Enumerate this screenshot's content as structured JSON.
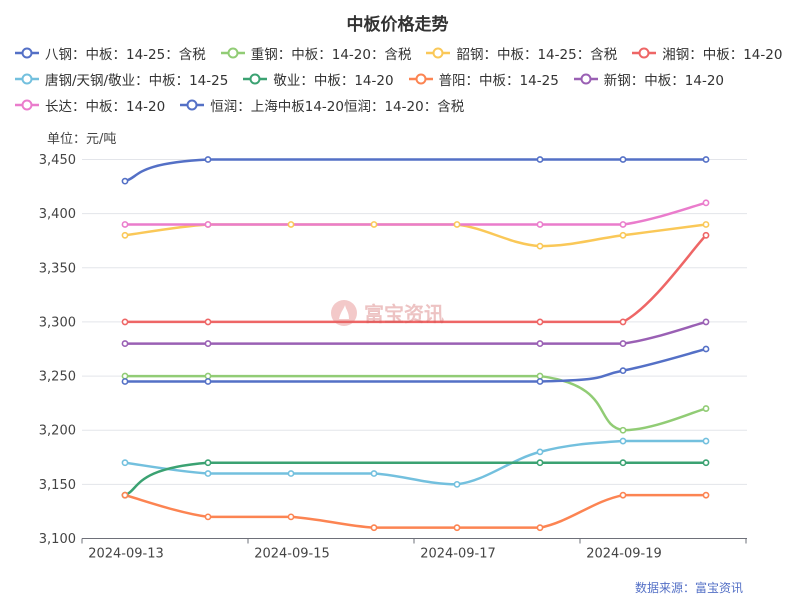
{
  "chart_data": {
    "type": "line",
    "title": "中板价格走势",
    "unit": "单位：元/吨",
    "source": "数据来源：富宝资讯",
    "watermark": "富宝资讯",
    "xlabel": "",
    "ylabel": "",
    "ylim": [
      3100,
      3450
    ],
    "yticks": [
      3100,
      3150,
      3200,
      3250,
      3300,
      3350,
      3400,
      3450
    ],
    "ytick_labels": [
      "3,100",
      "3,150",
      "3,200",
      "3,250",
      "3,300",
      "3,350",
      "3,400",
      "3,450"
    ],
    "x": [
      "2024-09-13",
      "2024-09-14",
      "2024-09-15",
      "2024-09-16",
      "2024-09-17",
      "2024-09-18",
      "2024-09-19",
      "2024-09-20"
    ],
    "xtick_labels": [
      "2024-09-13",
      "2024-09-15",
      "2024-09-17",
      "2024-09-19"
    ],
    "grid": true,
    "legend_position": "top",
    "series": [
      {
        "name": "八钢：中板：14-25：含税",
        "color": "#5470c6",
        "values": [
          3430,
          3450,
          null,
          null,
          null,
          3450,
          3450,
          3450
        ]
      },
      {
        "name": "重钢：中板：14-20：含税",
        "color": "#91cc75",
        "values": [
          3250,
          3250,
          null,
          null,
          null,
          3250,
          3200,
          3220
        ]
      },
      {
        "name": "韶钢：中板：14-25：含税",
        "color": "#fac858",
        "values": [
          3380,
          3390,
          3390,
          3390,
          3390,
          3370,
          3380,
          3390
        ]
      },
      {
        "name": "湘钢：中板：14-20",
        "color": "#ee6666",
        "values": [
          3300,
          3300,
          null,
          null,
          null,
          3300,
          3300,
          3380
        ]
      },
      {
        "name": "唐钢/天钢/敬业：中板：14-25",
        "color": "#73c0de",
        "values": [
          3170,
          3160,
          3160,
          3160,
          3150,
          3180,
          3190,
          3190
        ]
      },
      {
        "name": "敬业：中板：14-20",
        "color": "#3ba272",
        "values": [
          3140,
          3170,
          null,
          null,
          null,
          3170,
          3170,
          3170
        ]
      },
      {
        "name": "普阳：中板：14-25",
        "color": "#fc8452",
        "values": [
          3140,
          3120,
          3120,
          3110,
          3110,
          3110,
          3140,
          3140
        ]
      },
      {
        "name": "新钢：中板：14-20",
        "color": "#9a60b4",
        "values": [
          3280,
          3280,
          null,
          null,
          null,
          3280,
          3280,
          3300
        ]
      },
      {
        "name": "长达：中板：14-20",
        "color": "#ea7ccc",
        "values": [
          3390,
          3390,
          null,
          null,
          null,
          3390,
          3390,
          3410
        ]
      },
      {
        "name": "恒润：上海中板14-20恒润：14-20：含税",
        "color": "#5470c6",
        "values": [
          3245,
          3245,
          null,
          null,
          null,
          3245,
          3255,
          3275
        ]
      }
    ]
  }
}
